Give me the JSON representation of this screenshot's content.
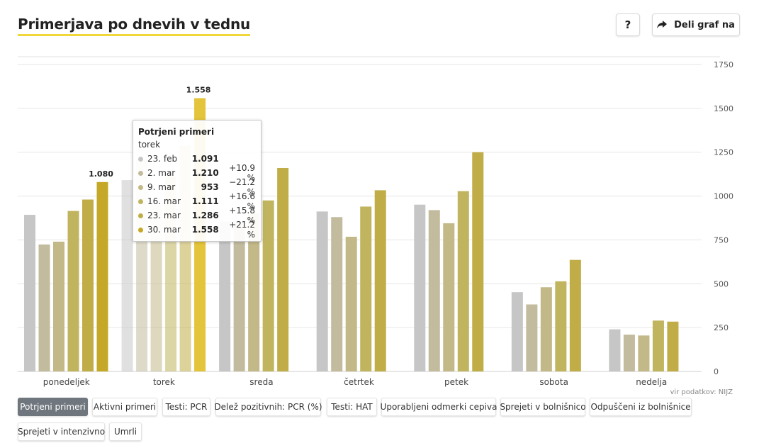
{
  "header": {
    "title": "Primerjava po dnevih v tednu",
    "help_label": "?",
    "share_label": "Deli graf na"
  },
  "source": "vir podatkov: NIJZ",
  "colors": {
    "title_underline": "#f2d73b",
    "series": [
      "#c6c6c6",
      "#c3bb9e",
      "#c2b888",
      "#c0b45e",
      "#c1ad47",
      "#c5a827"
    ],
    "highlight": "#e3c43a",
    "active_tab": "#6f767e"
  },
  "chart_data": {
    "type": "bar",
    "categories": [
      "ponedeljek",
      "torek",
      "sreda",
      "četrtek",
      "petek",
      "sobota",
      "nedelja"
    ],
    "series": [
      {
        "name": "23. feb",
        "values": [
          893,
          1091,
          855,
          912,
          951,
          452,
          240
        ]
      },
      {
        "name": "2. mar",
        "values": [
          724,
          1210,
          858,
          880,
          920,
          382,
          210
        ]
      },
      {
        "name": "9. mar",
        "values": [
          740,
          953,
          902,
          768,
          845,
          480,
          205
        ]
      },
      {
        "name": "16. mar",
        "values": [
          915,
          1111,
          975,
          940,
          1028,
          514,
          290
        ]
      },
      {
        "name": "23. mar",
        "values": [
          980,
          1286,
          1160,
          1033,
          1250,
          636,
          284
        ]
      },
      {
        "name": "30. mar",
        "values": [
          1080,
          1558,
          null,
          null,
          null,
          null,
          null
        ]
      }
    ],
    "data_labels": [
      {
        "category": "ponedeljek",
        "series": "30. mar",
        "text": "1.080"
      },
      {
        "category": "torek",
        "series": "30. mar",
        "text": "1.558"
      }
    ],
    "y_ticks": [
      "0",
      "250",
      "500",
      "750",
      "1000",
      "1250",
      "1500",
      "1750"
    ],
    "y_tick_values": [
      0,
      250,
      500,
      750,
      1000,
      1250,
      1500,
      1750
    ],
    "ylim": [
      0,
      1750
    ],
    "grid": true,
    "y_axis_position": "right",
    "highlighted_category": "torek"
  },
  "tooltip": {
    "title": "Potrjeni primeri",
    "subtitle": "torek",
    "rows": [
      {
        "date": "23. feb",
        "value": "1.091",
        "change": ""
      },
      {
        "date": "2. mar",
        "value": "1.210",
        "change": "+10.9 %"
      },
      {
        "date": "9. mar",
        "value": "953",
        "change": "−21.2 %"
      },
      {
        "date": "16. mar",
        "value": "1.111",
        "change": "+16.6 %"
      },
      {
        "date": "23. mar",
        "value": "1.286",
        "change": "+15.8 %"
      },
      {
        "date": "30. mar",
        "value": "1.558",
        "change": "+21.2 %"
      }
    ]
  },
  "tabs": [
    {
      "label": "Potrjeni primeri",
      "active": true
    },
    {
      "label": "Aktivni primeri",
      "active": false
    },
    {
      "label": "Testi: PCR",
      "active": false
    },
    {
      "label": "Delež pozitivnih: PCR (%)",
      "active": false
    },
    {
      "label": "Testi: HAT",
      "active": false
    },
    {
      "label": "Uporabljeni odmerki cepiva",
      "active": false
    },
    {
      "label": "Sprejeti v bolnišnico",
      "active": false
    },
    {
      "label": "Odpuščeni iz bolnišnice",
      "active": false
    },
    {
      "label": "Sprejeti v intenzivno",
      "active": false
    },
    {
      "label": "Umrli",
      "active": false
    }
  ]
}
